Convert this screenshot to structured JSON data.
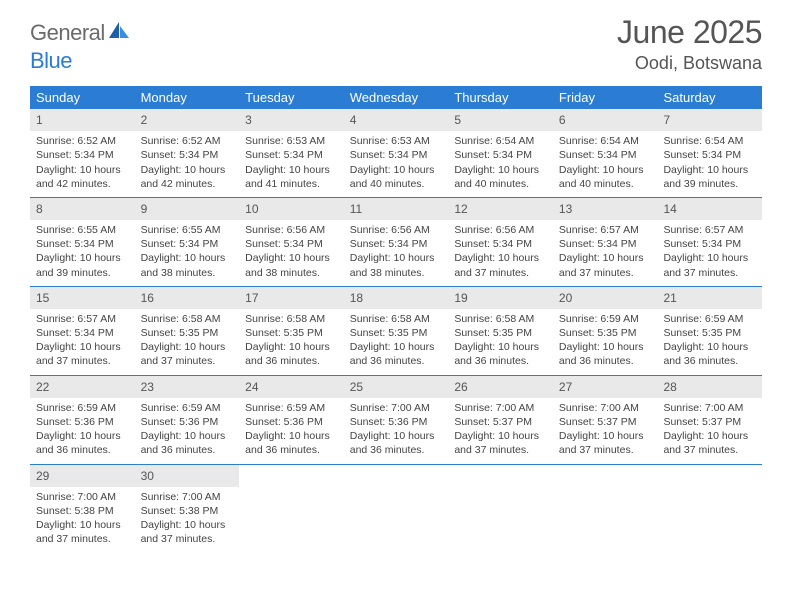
{
  "logo": {
    "word1": "General",
    "word2": "Blue"
  },
  "title": "June 2025",
  "location": "Oodi, Botswana",
  "colors": {
    "accent": "#2b7cd3",
    "dayNumBg": "#e9e9e9",
    "text": "#444444",
    "headerText": "#ffffff",
    "ruleColor": "#2b7cd3",
    "background": "#ffffff"
  },
  "dayNames": [
    "Sunday",
    "Monday",
    "Tuesday",
    "Wednesday",
    "Thursday",
    "Friday",
    "Saturday"
  ],
  "weeks": [
    [
      {
        "n": "1",
        "sr": "Sunrise: 6:52 AM",
        "ss": "Sunset: 5:34 PM",
        "dl": "Daylight: 10 hours and 42 minutes."
      },
      {
        "n": "2",
        "sr": "Sunrise: 6:52 AM",
        "ss": "Sunset: 5:34 PM",
        "dl": "Daylight: 10 hours and 42 minutes."
      },
      {
        "n": "3",
        "sr": "Sunrise: 6:53 AM",
        "ss": "Sunset: 5:34 PM",
        "dl": "Daylight: 10 hours and 41 minutes."
      },
      {
        "n": "4",
        "sr": "Sunrise: 6:53 AM",
        "ss": "Sunset: 5:34 PM",
        "dl": "Daylight: 10 hours and 40 minutes."
      },
      {
        "n": "5",
        "sr": "Sunrise: 6:54 AM",
        "ss": "Sunset: 5:34 PM",
        "dl": "Daylight: 10 hours and 40 minutes."
      },
      {
        "n": "6",
        "sr": "Sunrise: 6:54 AM",
        "ss": "Sunset: 5:34 PM",
        "dl": "Daylight: 10 hours and 40 minutes."
      },
      {
        "n": "7",
        "sr": "Sunrise: 6:54 AM",
        "ss": "Sunset: 5:34 PM",
        "dl": "Daylight: 10 hours and 39 minutes."
      }
    ],
    [
      {
        "n": "8",
        "sr": "Sunrise: 6:55 AM",
        "ss": "Sunset: 5:34 PM",
        "dl": "Daylight: 10 hours and 39 minutes."
      },
      {
        "n": "9",
        "sr": "Sunrise: 6:55 AM",
        "ss": "Sunset: 5:34 PM",
        "dl": "Daylight: 10 hours and 38 minutes."
      },
      {
        "n": "10",
        "sr": "Sunrise: 6:56 AM",
        "ss": "Sunset: 5:34 PM",
        "dl": "Daylight: 10 hours and 38 minutes."
      },
      {
        "n": "11",
        "sr": "Sunrise: 6:56 AM",
        "ss": "Sunset: 5:34 PM",
        "dl": "Daylight: 10 hours and 38 minutes."
      },
      {
        "n": "12",
        "sr": "Sunrise: 6:56 AM",
        "ss": "Sunset: 5:34 PM",
        "dl": "Daylight: 10 hours and 37 minutes."
      },
      {
        "n": "13",
        "sr": "Sunrise: 6:57 AM",
        "ss": "Sunset: 5:34 PM",
        "dl": "Daylight: 10 hours and 37 minutes."
      },
      {
        "n": "14",
        "sr": "Sunrise: 6:57 AM",
        "ss": "Sunset: 5:34 PM",
        "dl": "Daylight: 10 hours and 37 minutes."
      }
    ],
    [
      {
        "n": "15",
        "sr": "Sunrise: 6:57 AM",
        "ss": "Sunset: 5:34 PM",
        "dl": "Daylight: 10 hours and 37 minutes."
      },
      {
        "n": "16",
        "sr": "Sunrise: 6:58 AM",
        "ss": "Sunset: 5:35 PM",
        "dl": "Daylight: 10 hours and 37 minutes."
      },
      {
        "n": "17",
        "sr": "Sunrise: 6:58 AM",
        "ss": "Sunset: 5:35 PM",
        "dl": "Daylight: 10 hours and 36 minutes."
      },
      {
        "n": "18",
        "sr": "Sunrise: 6:58 AM",
        "ss": "Sunset: 5:35 PM",
        "dl": "Daylight: 10 hours and 36 minutes."
      },
      {
        "n": "19",
        "sr": "Sunrise: 6:58 AM",
        "ss": "Sunset: 5:35 PM",
        "dl": "Daylight: 10 hours and 36 minutes."
      },
      {
        "n": "20",
        "sr": "Sunrise: 6:59 AM",
        "ss": "Sunset: 5:35 PM",
        "dl": "Daylight: 10 hours and 36 minutes."
      },
      {
        "n": "21",
        "sr": "Sunrise: 6:59 AM",
        "ss": "Sunset: 5:35 PM",
        "dl": "Daylight: 10 hours and 36 minutes."
      }
    ],
    [
      {
        "n": "22",
        "sr": "Sunrise: 6:59 AM",
        "ss": "Sunset: 5:36 PM",
        "dl": "Daylight: 10 hours and 36 minutes."
      },
      {
        "n": "23",
        "sr": "Sunrise: 6:59 AM",
        "ss": "Sunset: 5:36 PM",
        "dl": "Daylight: 10 hours and 36 minutes."
      },
      {
        "n": "24",
        "sr": "Sunrise: 6:59 AM",
        "ss": "Sunset: 5:36 PM",
        "dl": "Daylight: 10 hours and 36 minutes."
      },
      {
        "n": "25",
        "sr": "Sunrise: 7:00 AM",
        "ss": "Sunset: 5:36 PM",
        "dl": "Daylight: 10 hours and 36 minutes."
      },
      {
        "n": "26",
        "sr": "Sunrise: 7:00 AM",
        "ss": "Sunset: 5:37 PM",
        "dl": "Daylight: 10 hours and 37 minutes."
      },
      {
        "n": "27",
        "sr": "Sunrise: 7:00 AM",
        "ss": "Sunset: 5:37 PM",
        "dl": "Daylight: 10 hours and 37 minutes."
      },
      {
        "n": "28",
        "sr": "Sunrise: 7:00 AM",
        "ss": "Sunset: 5:37 PM",
        "dl": "Daylight: 10 hours and 37 minutes."
      }
    ],
    [
      {
        "n": "29",
        "sr": "Sunrise: 7:00 AM",
        "ss": "Sunset: 5:38 PM",
        "dl": "Daylight: 10 hours and 37 minutes."
      },
      {
        "n": "30",
        "sr": "Sunrise: 7:00 AM",
        "ss": "Sunset: 5:38 PM",
        "dl": "Daylight: 10 hours and 37 minutes."
      },
      {
        "empty": true
      },
      {
        "empty": true
      },
      {
        "empty": true
      },
      {
        "empty": true
      },
      {
        "empty": true
      }
    ]
  ]
}
